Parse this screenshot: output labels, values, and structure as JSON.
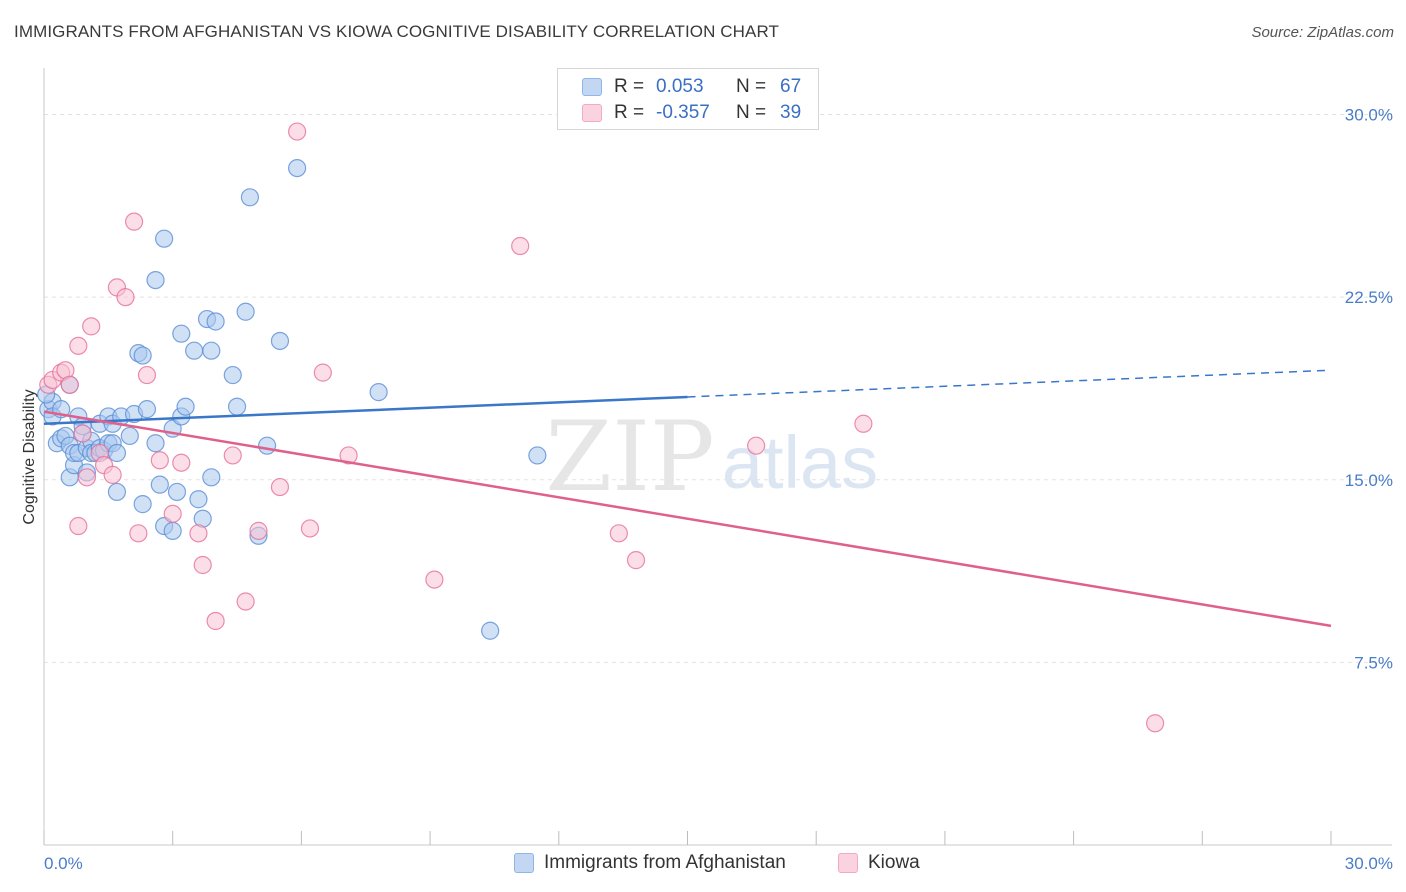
{
  "header": {
    "title": "IMMIGRANTS FROM AFGHANISTAN VS KIOWA COGNITIVE DISABILITY CORRELATION CHART",
    "source": "Source: ZipAtlas.com"
  },
  "watermark": {
    "zip": "ZIP",
    "atlas": "atlas"
  },
  "legend": {
    "rows": [
      {
        "r_label": "R =",
        "r_value": "0.053",
        "n_label": "N =",
        "n_value": "67",
        "color": "#8fb6ea"
      },
      {
        "r_label": "R =",
        "r_value": "-0.357",
        "n_label": "N =",
        "n_value": "39",
        "color": "#f4a9c2"
      }
    ]
  },
  "bottom_legend": {
    "items": [
      {
        "label": "Immigrants from Afghanistan",
        "color": "#8fb6ea"
      },
      {
        "label": "Kiowa",
        "color": "#f4a9c2"
      }
    ]
  },
  "chart_data": {
    "type": "scatter",
    "title": "IMMIGRANTS FROM AFGHANISTAN VS KIOWA COGNITIVE DISABILITY CORRELATION CHART",
    "xlabel": "",
    "ylabel": "Cognitive Disability",
    "xlim": [
      0,
      30
    ],
    "ylim": [
      0,
      31.5
    ],
    "x_tick_labels": [
      "0.0%",
      "30.0%"
    ],
    "y_ticks": [
      7.5,
      15.0,
      22.5,
      30.0
    ],
    "y_tick_labels": [
      "7.5%",
      "15.0%",
      "22.5%",
      "30.0%"
    ],
    "grid": true,
    "legend_placement": "bottom",
    "series": [
      {
        "name": "Immigrants from Afghanistan",
        "color": "#5b8fd6",
        "fill": "#a9c8ef",
        "points": [
          [
            0.1,
            17.9
          ],
          [
            0.2,
            18.2
          ],
          [
            0.2,
            17.6
          ],
          [
            0.3,
            16.5
          ],
          [
            0.4,
            17.9
          ],
          [
            0.4,
            16.7
          ],
          [
            0.5,
            16.8
          ],
          [
            0.6,
            18.9
          ],
          [
            0.6,
            16.4
          ],
          [
            0.6,
            15.1
          ],
          [
            0.7,
            15.6
          ],
          [
            0.7,
            16.1
          ],
          [
            0.8,
            16.1
          ],
          [
            0.8,
            17.6
          ],
          [
            0.9,
            16.9
          ],
          [
            0.9,
            17.2
          ],
          [
            1.0,
            15.3
          ],
          [
            1.0,
            16.3
          ],
          [
            1.1,
            16.6
          ],
          [
            1.1,
            16.1
          ],
          [
            1.2,
            16.1
          ],
          [
            1.3,
            16.3
          ],
          [
            1.3,
            17.3
          ],
          [
            1.4,
            16.2
          ],
          [
            1.5,
            17.6
          ],
          [
            1.5,
            16.5
          ],
          [
            1.6,
            17.3
          ],
          [
            1.6,
            16.5
          ],
          [
            1.7,
            14.5
          ],
          [
            1.7,
            16.1
          ],
          [
            1.8,
            17.6
          ],
          [
            2.0,
            16.8
          ],
          [
            2.1,
            17.7
          ],
          [
            2.2,
            20.2
          ],
          [
            2.3,
            20.1
          ],
          [
            2.3,
            14.0
          ],
          [
            2.4,
            17.9
          ],
          [
            2.6,
            23.2
          ],
          [
            2.6,
            16.5
          ],
          [
            2.7,
            14.8
          ],
          [
            2.8,
            24.9
          ],
          [
            2.8,
            13.1
          ],
          [
            3.0,
            12.9
          ],
          [
            3.0,
            17.1
          ],
          [
            3.1,
            14.5
          ],
          [
            3.2,
            17.6
          ],
          [
            3.2,
            21.0
          ],
          [
            3.3,
            18.0
          ],
          [
            3.5,
            20.3
          ],
          [
            3.6,
            14.2
          ],
          [
            3.7,
            13.4
          ],
          [
            3.8,
            21.6
          ],
          [
            3.9,
            15.1
          ],
          [
            3.9,
            20.3
          ],
          [
            4.0,
            21.5
          ],
          [
            4.4,
            19.3
          ],
          [
            4.5,
            18.0
          ],
          [
            4.7,
            21.9
          ],
          [
            4.8,
            26.6
          ],
          [
            5.0,
            12.7
          ],
          [
            5.2,
            16.4
          ],
          [
            5.5,
            20.7
          ],
          [
            5.9,
            27.8
          ],
          [
            7.8,
            18.6
          ],
          [
            10.4,
            8.8
          ],
          [
            11.5,
            16.0
          ],
          [
            0.05,
            18.5
          ]
        ],
        "trend": {
          "x": [
            0,
            15,
            30
          ],
          "y": [
            17.3,
            18.4,
            19.5
          ],
          "solid_until_x": 15
        }
      },
      {
        "name": "Kiowa",
        "color": "#e7719a",
        "fill": "#f8c2d3",
        "points": [
          [
            0.1,
            18.9
          ],
          [
            0.2,
            19.1
          ],
          [
            0.4,
            19.4
          ],
          [
            0.5,
            19.5
          ],
          [
            0.6,
            18.9
          ],
          [
            0.8,
            20.5
          ],
          [
            0.8,
            13.1
          ],
          [
            0.9,
            16.9
          ],
          [
            1.0,
            15.1
          ],
          [
            1.1,
            21.3
          ],
          [
            1.3,
            16.1
          ],
          [
            1.4,
            15.6
          ],
          [
            1.6,
            15.2
          ],
          [
            1.7,
            22.9
          ],
          [
            1.9,
            22.5
          ],
          [
            2.1,
            25.6
          ],
          [
            2.2,
            12.8
          ],
          [
            2.4,
            19.3
          ],
          [
            2.7,
            15.8
          ],
          [
            3.0,
            13.6
          ],
          [
            3.2,
            15.7
          ],
          [
            3.6,
            12.8
          ],
          [
            3.7,
            11.5
          ],
          [
            4.0,
            9.2
          ],
          [
            4.4,
            16.0
          ],
          [
            4.7,
            10.0
          ],
          [
            5.0,
            12.9
          ],
          [
            5.5,
            14.7
          ],
          [
            5.9,
            29.3
          ],
          [
            6.2,
            13.0
          ],
          [
            6.5,
            19.4
          ],
          [
            7.1,
            16.0
          ],
          [
            9.1,
            10.9
          ],
          [
            11.1,
            24.6
          ],
          [
            13.4,
            12.8
          ],
          [
            13.8,
            11.7
          ],
          [
            16.6,
            16.4
          ],
          [
            19.1,
            17.3
          ],
          [
            25.9,
            5.0
          ]
        ],
        "trend": {
          "x": [
            0,
            30
          ],
          "y": [
            17.8,
            9.0
          ]
        }
      }
    ]
  }
}
